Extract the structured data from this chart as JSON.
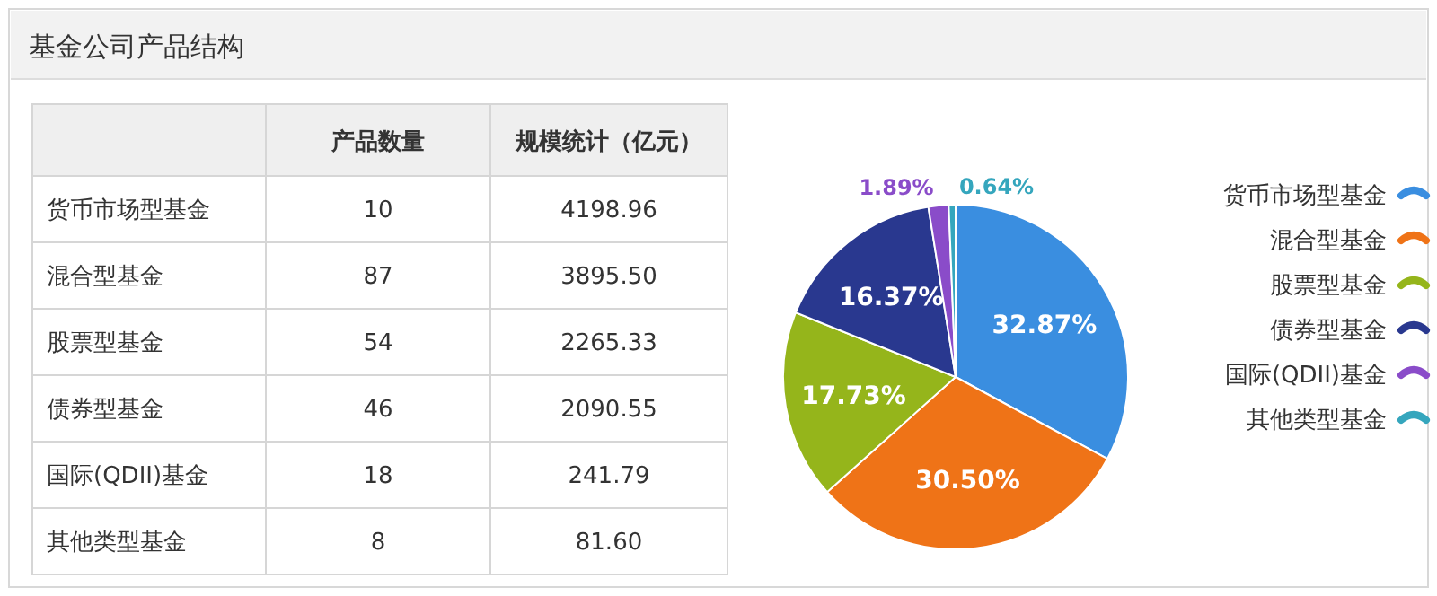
{
  "chart_data": [
    {
      "type": "other",
      "title": "基金公司产品结构",
      "data_labels": true,
      "categories": [
        "货币市场型基金",
        "混合型基金",
        "股票型基金",
        "债券型基金",
        "国际(QDII)基金",
        "其他类型基金"
      ],
      "series": [
        {
          "name": "产品数量",
          "values": [
            10,
            87,
            54,
            46,
            18,
            8
          ]
        },
        {
          "name": "规模统计（亿元）",
          "values": [
            4198.96,
            3895.5,
            2265.33,
            2090.55,
            241.79,
            81.6
          ],
          "value_labels": [
            "4198.96",
            "3895.50",
            "2265.33",
            "2090.55",
            "241.79",
            "81.60"
          ]
        }
      ]
    },
    {
      "type": "pie",
      "categories": [
        "货币市场型基金",
        "混合型基金",
        "股票型基金",
        "债券型基金",
        "国际(QDII)基金",
        "其他类型基金"
      ],
      "values": [
        32.87,
        30.5,
        17.73,
        16.37,
        1.89,
        0.64
      ],
      "value_labels": [
        "32.87%",
        "30.50%",
        "17.73%",
        "16.37%",
        "1.89%",
        "0.64%"
      ],
      "colors": [
        "#3a8ee0",
        "#ef7317",
        "#95b51b",
        "#29388f",
        "#8a4cc9",
        "#35a6bd"
      ],
      "legend": "right"
    }
  ]
}
